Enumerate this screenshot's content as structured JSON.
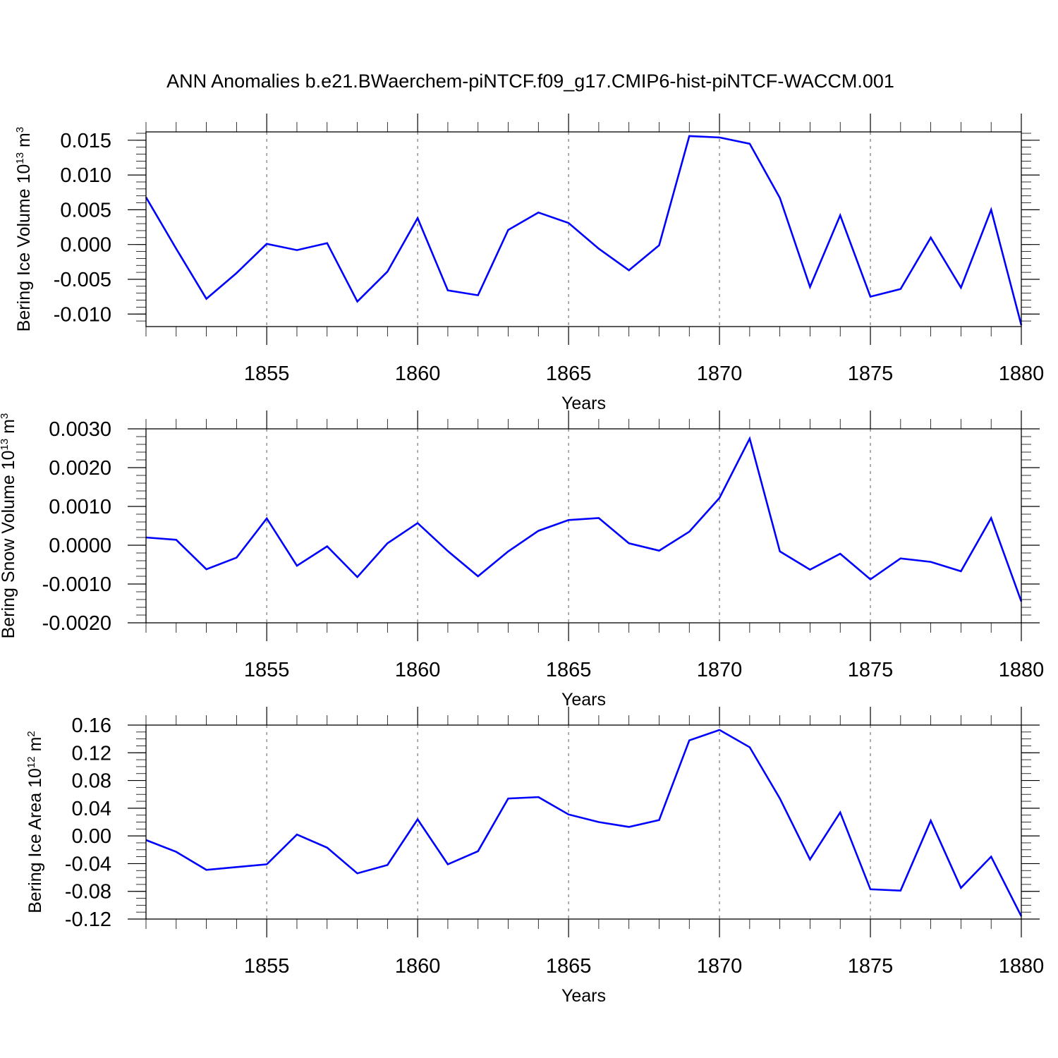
{
  "title": "ANN Anomalies b.e21.BWaerchem-piNTCF.f09_g17.CMIP6-hist-piNTCF-WACCM.001",
  "colors": {
    "line": "#0000ff",
    "grid": "#777777",
    "axis": "#000000"
  },
  "chart_data": [
    {
      "type": "line",
      "name": "bering-ice-volume",
      "ylabel": {
        "text": "Bering Ice Volume 10",
        "exp": "13",
        "unit": " m",
        "unit_exp": "3"
      },
      "xlabel": "Years",
      "xlim": [
        1851,
        1880
      ],
      "ylim": [
        -0.0118,
        0.0162
      ],
      "xticks": [
        1855,
        1860,
        1865,
        1870,
        1875,
        1880
      ],
      "xtick_labels": [
        "1855",
        "1860",
        "1865",
        "1870",
        "1875",
        "1880"
      ],
      "yticks": [
        -0.01,
        -0.005,
        0.0,
        0.005,
        0.01,
        0.015
      ],
      "ytick_labels": [
        "-0.010",
        "-0.005",
        "0.000",
        "0.005",
        "0.010",
        "0.015"
      ],
      "y_minor_step": 0.001,
      "grid": "vertical-dashed",
      "x": [
        1851,
        1852,
        1853,
        1854,
        1855,
        1856,
        1857,
        1858,
        1859,
        1860,
        1861,
        1862,
        1863,
        1864,
        1865,
        1866,
        1867,
        1868,
        1869,
        1870,
        1871,
        1872,
        1873,
        1874,
        1875,
        1876,
        1877,
        1878,
        1879,
        1880
      ],
      "y": [
        0.0068,
        -0.0006,
        -0.0078,
        -0.0041,
        0.0001,
        -0.0008,
        0.0002,
        -0.0082,
        -0.0039,
        0.0038,
        -0.0066,
        -0.0073,
        0.0021,
        0.0046,
        0.0031,
        -0.0006,
        -0.0037,
        -0.0001,
        0.0156,
        0.0154,
        0.0145,
        0.0067,
        -0.0061,
        0.0042,
        -0.0075,
        -0.0064,
        0.001,
        -0.0062,
        0.005,
        -0.0116
      ]
    },
    {
      "type": "line",
      "name": "bering-snow-volume",
      "ylabel": {
        "text": "Bering Snow Volume 10",
        "exp": "13",
        "unit": " m",
        "unit_exp": "3"
      },
      "xlabel": "Years",
      "xlim": [
        1851,
        1880
      ],
      "ylim": [
        -0.002,
        0.003
      ],
      "xticks": [
        1855,
        1860,
        1865,
        1870,
        1875,
        1880
      ],
      "xtick_labels": [
        "1855",
        "1860",
        "1865",
        "1870",
        "1875",
        "1880"
      ],
      "yticks": [
        -0.002,
        -0.001,
        0.0,
        0.001,
        0.002,
        0.003
      ],
      "ytick_labels": [
        "-0.0020",
        "-0.0010",
        "0.0000",
        "0.0010",
        "0.0020",
        "0.0030"
      ],
      "y_minor_step": 0.0002,
      "grid": "vertical-dashed",
      "x": [
        1851,
        1852,
        1853,
        1854,
        1855,
        1856,
        1857,
        1858,
        1859,
        1860,
        1861,
        1862,
        1863,
        1864,
        1865,
        1866,
        1867,
        1868,
        1869,
        1870,
        1871,
        1872,
        1873,
        1874,
        1875,
        1876,
        1877,
        1878,
        1879,
        1880
      ],
      "y": [
        0.0002,
        0.00014,
        -0.00062,
        -0.00032,
        0.00069,
        -0.00053,
        -3e-05,
        -0.00082,
        5e-05,
        0.00057,
        -0.00015,
        -0.0008,
        -0.00016,
        0.00037,
        0.00065,
        0.0007,
        5e-05,
        -0.00014,
        0.00035,
        0.00122,
        0.00275,
        -0.00016,
        -0.00063,
        -0.00022,
        -0.00088,
        -0.00034,
        -0.00043,
        -0.00067,
        0.0007,
        -0.00145
      ]
    },
    {
      "type": "line",
      "name": "bering-ice-area",
      "ylabel": {
        "text": "Bering Ice Area 10",
        "exp": "12",
        "unit": " m",
        "unit_exp": "2"
      },
      "xlabel": "Years",
      "xlim": [
        1851,
        1880
      ],
      "ylim": [
        -0.12,
        0.16
      ],
      "xticks": [
        1855,
        1860,
        1865,
        1870,
        1875,
        1880
      ],
      "xtick_labels": [
        "1855",
        "1860",
        "1865",
        "1870",
        "1875",
        "1880"
      ],
      "yticks": [
        -0.12,
        -0.08,
        -0.04,
        0.0,
        0.04,
        0.08,
        0.12,
        0.16
      ],
      "ytick_labels": [
        "-0.12",
        "-0.08",
        "-0.04",
        "0.00",
        "0.04",
        "0.08",
        "0.12",
        "0.16"
      ],
      "y_minor_step": 0.01,
      "grid": "vertical-dashed",
      "x": [
        1851,
        1852,
        1853,
        1854,
        1855,
        1856,
        1857,
        1858,
        1859,
        1860,
        1861,
        1862,
        1863,
        1864,
        1865,
        1866,
        1867,
        1868,
        1869,
        1870,
        1871,
        1872,
        1873,
        1874,
        1875,
        1876,
        1877,
        1878,
        1879,
        1880
      ],
      "y": [
        -0.006,
        -0.023,
        -0.049,
        -0.045,
        -0.041,
        0.002,
        -0.017,
        -0.054,
        -0.042,
        0.024,
        -0.041,
        -0.022,
        0.054,
        0.056,
        0.031,
        0.02,
        0.013,
        0.023,
        0.138,
        0.153,
        0.128,
        0.054,
        -0.034,
        0.034,
        -0.077,
        -0.079,
        0.022,
        -0.075,
        -0.03,
        -0.116
      ]
    }
  ]
}
